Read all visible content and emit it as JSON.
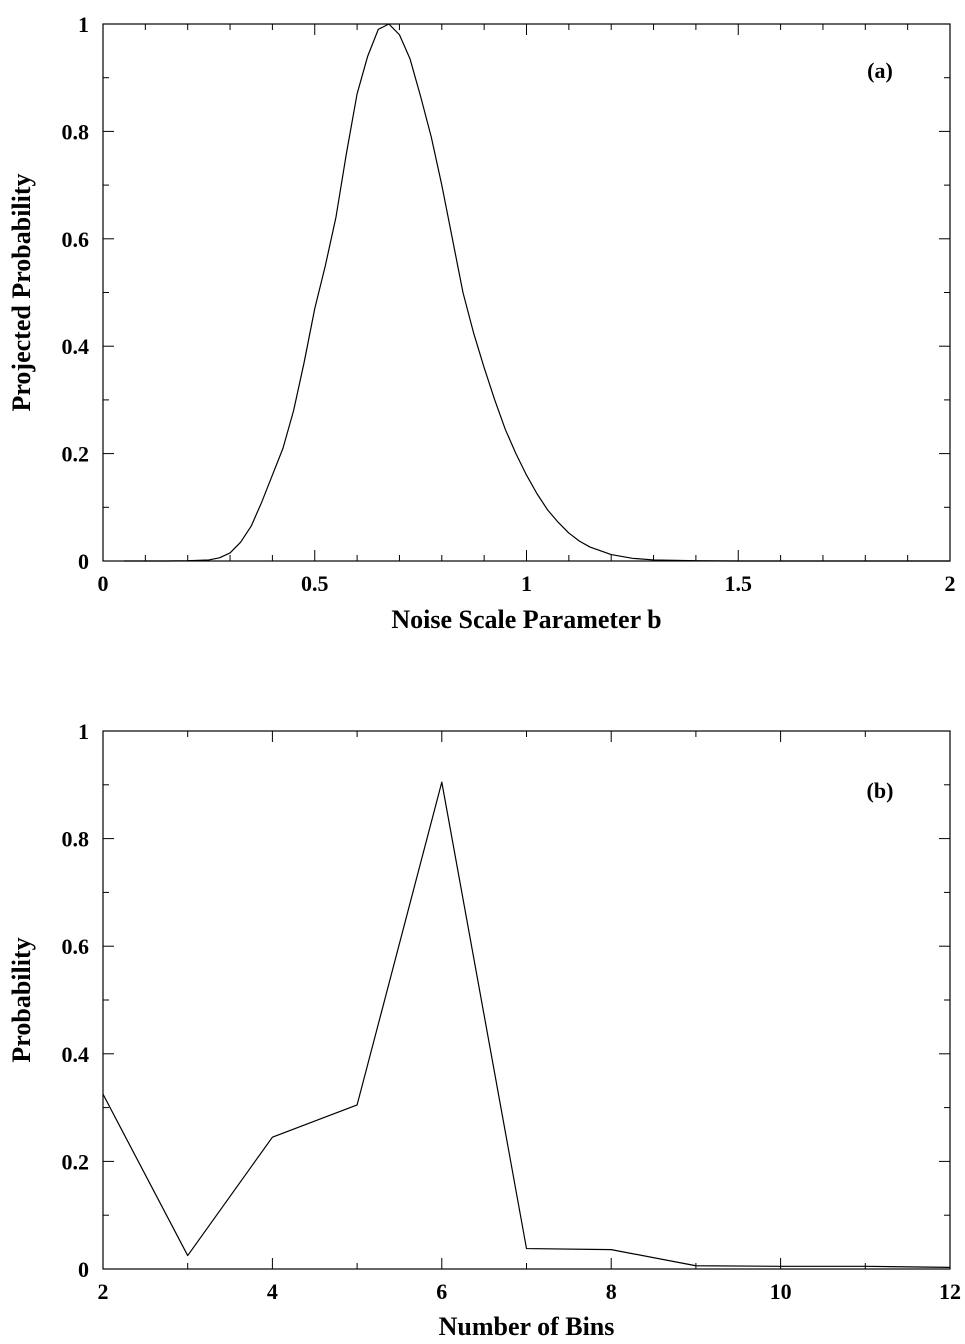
{
  "chart_data": [
    {
      "type": "line",
      "annotation": "(a)",
      "xlabel": "Noise Scale Parameter  b",
      "ylabel": "Projected Probability",
      "xlim": [
        0,
        2
      ],
      "ylim": [
        0,
        1
      ],
      "xticks": [
        0,
        0.5,
        1,
        1.5,
        2
      ],
      "xtick_labels": [
        "0",
        "0.5",
        "1",
        "1.5",
        "2"
      ],
      "yticks": [
        0,
        0.2,
        0.4,
        0.6,
        0.8,
        1
      ],
      "ytick_labels": [
        "0",
        "0.2",
        "0.4",
        "0.6",
        "0.8",
        "1"
      ],
      "x_minor_step": 0.1,
      "y_minor_step": 0.1,
      "grid": false,
      "series": [
        {
          "x": [
            0.05,
            0.1,
            0.15,
            0.2,
            0.25,
            0.275,
            0.3,
            0.325,
            0.35,
            0.375,
            0.4,
            0.425,
            0.45,
            0.475,
            0.5,
            0.525,
            0.55,
            0.575,
            0.6,
            0.625,
            0.65,
            0.675,
            0.7,
            0.725,
            0.75,
            0.775,
            0.8,
            0.825,
            0.85,
            0.875,
            0.9,
            0.925,
            0.95,
            0.975,
            1.0,
            1.025,
            1.05,
            1.075,
            1.1,
            1.125,
            1.15,
            1.2,
            1.25,
            1.3,
            1.4,
            1.5,
            1.6,
            1.7,
            1.8,
            1.9,
            2.0
          ],
          "y": [
            0,
            0,
            0,
            0.0005,
            0.002,
            0.006,
            0.015,
            0.035,
            0.065,
            0.11,
            0.16,
            0.21,
            0.28,
            0.37,
            0.47,
            0.55,
            0.64,
            0.76,
            0.87,
            0.94,
            0.99,
            1.0,
            0.98,
            0.935,
            0.865,
            0.79,
            0.7,
            0.6,
            0.5,
            0.425,
            0.36,
            0.3,
            0.245,
            0.2,
            0.16,
            0.125,
            0.095,
            0.072,
            0.052,
            0.037,
            0.026,
            0.012,
            0.005,
            0.002,
            0.0005,
            0,
            0,
            0,
            0,
            0,
            0
          ]
        }
      ]
    },
    {
      "type": "line",
      "annotation": "(b)",
      "xlabel": "Number of Bins",
      "ylabel": "Probability",
      "xlim": [
        2,
        12
      ],
      "ylim": [
        0,
        1
      ],
      "xticks": [
        2,
        4,
        6,
        8,
        10,
        12
      ],
      "xtick_labels": [
        "2",
        "4",
        "6",
        "8",
        "10",
        "12"
      ],
      "yticks": [
        0,
        0.2,
        0.4,
        0.6,
        0.8,
        1
      ],
      "ytick_labels": [
        "0",
        "0.2",
        "0.4",
        "0.6",
        "0.8",
        "1"
      ],
      "x_minor_step": 1,
      "y_minor_step": 0.1,
      "grid": false,
      "series": [
        {
          "x": [
            2,
            3,
            4,
            5,
            6,
            7,
            8,
            9,
            10,
            11,
            12
          ],
          "y": [
            0.325,
            0.025,
            0.245,
            0.305,
            0.905,
            0.038,
            0.036,
            0.006,
            0.005,
            0.005,
            0.003
          ]
        }
      ]
    }
  ]
}
